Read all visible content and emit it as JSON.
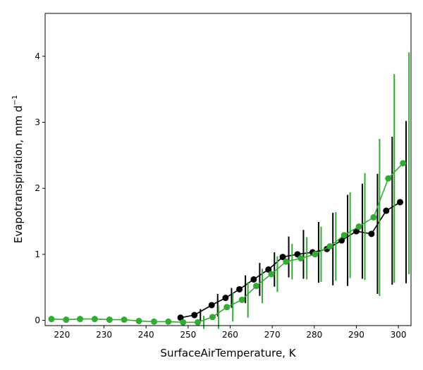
{
  "chart_data": {
    "type": "line",
    "xlabel": "SurfaceAirTemperature,  K",
    "ylabel": "Evapotranspiration,  mm d",
    "ylabel_superscript": "−1",
    "xlim": [
      216,
      303
    ],
    "ylim": [
      -0.08,
      4.65
    ],
    "xticks": [
      220,
      230,
      240,
      250,
      260,
      270,
      280,
      290,
      300
    ],
    "yticks": [
      0,
      1,
      2,
      3,
      4
    ],
    "grid": false,
    "legend": "none",
    "series": [
      {
        "color": "#000000",
        "x": [
          248.2,
          251.5,
          255.6,
          258.9,
          262.2,
          265.6,
          269.1,
          272.5,
          276.0,
          279.6,
          283.0,
          286.5,
          290.0,
          293.6,
          297.1,
          300.4
        ],
        "y": [
          0.04,
          0.08,
          0.23,
          0.34,
          0.47,
          0.62,
          0.77,
          0.96,
          1.0,
          1.03,
          1.08,
          1.21,
          1.35,
          1.31,
          1.66,
          1.79
        ],
        "err": [
          0.0,
          0.09,
          0.17,
          0.15,
          0.21,
          0.25,
          0.26,
          0.31,
          0.37,
          0.46,
          0.55,
          0.69,
          0.72,
          0.91,
          1.12,
          1.23
        ]
      },
      {
        "color": "#33aa33",
        "x": [
          217.5,
          221.0,
          224.3,
          227.8,
          231.3,
          234.8,
          238.3,
          241.9,
          245.3,
          248.8,
          252.3,
          255.8,
          259.2,
          262.8,
          266.2,
          269.8,
          273.3,
          276.8,
          280.2,
          283.7,
          287.1,
          290.6,
          294.1,
          297.6,
          301.1
        ],
        "y": [
          0.02,
          0.01,
          0.02,
          0.02,
          0.01,
          0.01,
          -0.01,
          -0.02,
          -0.02,
          -0.03,
          -0.03,
          0.05,
          0.2,
          0.31,
          0.52,
          0.7,
          0.89,
          0.94,
          1.0,
          1.12,
          1.29,
          1.42,
          1.56,
          2.15,
          2.38
        ],
        "err": [
          0.0,
          0.0,
          0.0,
          0.0,
          0.0,
          0.0,
          0.0,
          0.0,
          0.0,
          0.0,
          0.1,
          0.18,
          0.22,
          0.27,
          0.26,
          0.27,
          0.27,
          0.32,
          0.42,
          0.52,
          0.65,
          0.81,
          1.19,
          1.58,
          1.68
        ]
      }
    ]
  }
}
